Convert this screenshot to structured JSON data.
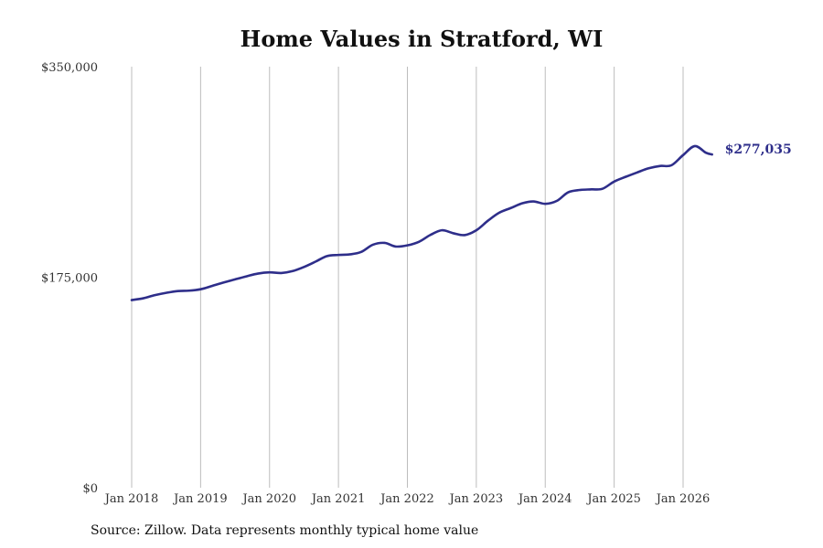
{
  "chart_data": {
    "type": "line",
    "title": "Home Values in Stratford, WI",
    "xlabel": "",
    "ylabel": "",
    "ylim": [
      0,
      350000
    ],
    "y_ticks": [
      {
        "value": 0,
        "label": "$0"
      },
      {
        "value": 175000,
        "label": "$175,000"
      },
      {
        "value": 350000,
        "label": "$350,000"
      }
    ],
    "x_ticks": [
      {
        "value": 2018.0,
        "label": "Jan 2018"
      },
      {
        "value": 2019.0,
        "label": "Jan 2019"
      },
      {
        "value": 2020.0,
        "label": "Jan 2020"
      },
      {
        "value": 2021.0,
        "label": "Jan 2021"
      },
      {
        "value": 2022.0,
        "label": "Jan 2022"
      },
      {
        "value": 2023.0,
        "label": "Jan 2023"
      },
      {
        "value": 2024.0,
        "label": "Jan 2024"
      },
      {
        "value": 2025.0,
        "label": "Jan 2025"
      },
      {
        "value": 2026.0,
        "label": "Jan 2026"
      }
    ],
    "grid": {
      "vertical": true,
      "horizontal": false
    },
    "series": [
      {
        "color": "#2e2e8a",
        "end_label": "$277,035",
        "points": [
          [
            2018.0,
            156000
          ],
          [
            2018.17,
            157500
          ],
          [
            2018.33,
            160000
          ],
          [
            2018.5,
            162000
          ],
          [
            2018.67,
            163500
          ],
          [
            2018.83,
            163800
          ],
          [
            2019.0,
            165000
          ],
          [
            2019.17,
            167800
          ],
          [
            2019.33,
            170500
          ],
          [
            2019.5,
            173200
          ],
          [
            2019.67,
            175800
          ],
          [
            2019.83,
            178000
          ],
          [
            2020.0,
            179000
          ],
          [
            2020.17,
            178500
          ],
          [
            2020.33,
            180000
          ],
          [
            2020.5,
            183500
          ],
          [
            2020.67,
            188000
          ],
          [
            2020.83,
            192500
          ],
          [
            2021.0,
            193500
          ],
          [
            2021.17,
            194000
          ],
          [
            2021.33,
            196000
          ],
          [
            2021.5,
            202000
          ],
          [
            2021.67,
            203500
          ],
          [
            2021.83,
            200500
          ],
          [
            2022.0,
            201500
          ],
          [
            2022.17,
            204500
          ],
          [
            2022.33,
            210000
          ],
          [
            2022.5,
            214000
          ],
          [
            2022.67,
            211500
          ],
          [
            2022.83,
            210000
          ],
          [
            2023.0,
            214000
          ],
          [
            2023.17,
            222000
          ],
          [
            2023.33,
            228500
          ],
          [
            2023.5,
            232500
          ],
          [
            2023.67,
            236500
          ],
          [
            2023.83,
            238000
          ],
          [
            2024.0,
            236000
          ],
          [
            2024.17,
            238500
          ],
          [
            2024.33,
            245500
          ],
          [
            2024.5,
            247500
          ],
          [
            2024.67,
            248000
          ],
          [
            2024.83,
            248500
          ],
          [
            2025.0,
            254500
          ],
          [
            2025.17,
            258500
          ],
          [
            2025.33,
            262000
          ],
          [
            2025.5,
            265500
          ],
          [
            2025.67,
            267500
          ],
          [
            2025.83,
            268000
          ],
          [
            2026.0,
            276500
          ],
          [
            2026.17,
            284000
          ],
          [
            2026.33,
            278500
          ],
          [
            2026.42,
            277035
          ]
        ]
      }
    ]
  },
  "footer": {
    "source": "Source: Zillow. Data represents monthly typical home value"
  }
}
